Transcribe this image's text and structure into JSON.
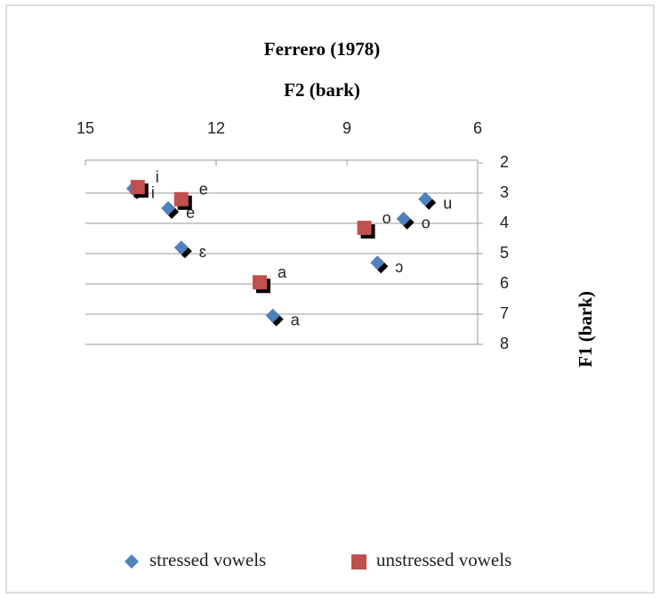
{
  "chart_data": {
    "type": "scatter",
    "title": "Ferrero (1978)",
    "x_label": "F2 (bark)",
    "y_label": "F1 (bark)",
    "xlim": [
      15,
      6
    ],
    "xticks": [
      15,
      12,
      9,
      6
    ],
    "x_reversed": true,
    "ylim": [
      2,
      8
    ],
    "yticks": [
      2,
      3,
      4,
      5,
      6,
      7,
      8
    ],
    "y_reversed": true,
    "grid": true,
    "legend": "bottom",
    "series": [
      {
        "name": "stressed vowels",
        "color": "#4f81bd",
        "marker": "diamond",
        "x": [
          13.9,
          13.1,
          12.8,
          10.7,
          7.2,
          7.7,
          8.3
        ],
        "values": [
          2.85,
          3.5,
          4.8,
          7.05,
          3.2,
          3.85,
          5.3
        ],
        "labels": [
          "i",
          "e",
          "ɛ",
          "a",
          "u",
          "o",
          "ɔ"
        ]
      },
      {
        "name": "unstressed vowels",
        "color": "#c0504d",
        "marker": "square",
        "x": [
          13.8,
          12.8,
          8.6,
          11.0
        ],
        "values": [
          2.8,
          3.2,
          4.15,
          5.95
        ],
        "labels": [
          "i",
          "e",
          "o",
          "a"
        ]
      }
    ]
  }
}
